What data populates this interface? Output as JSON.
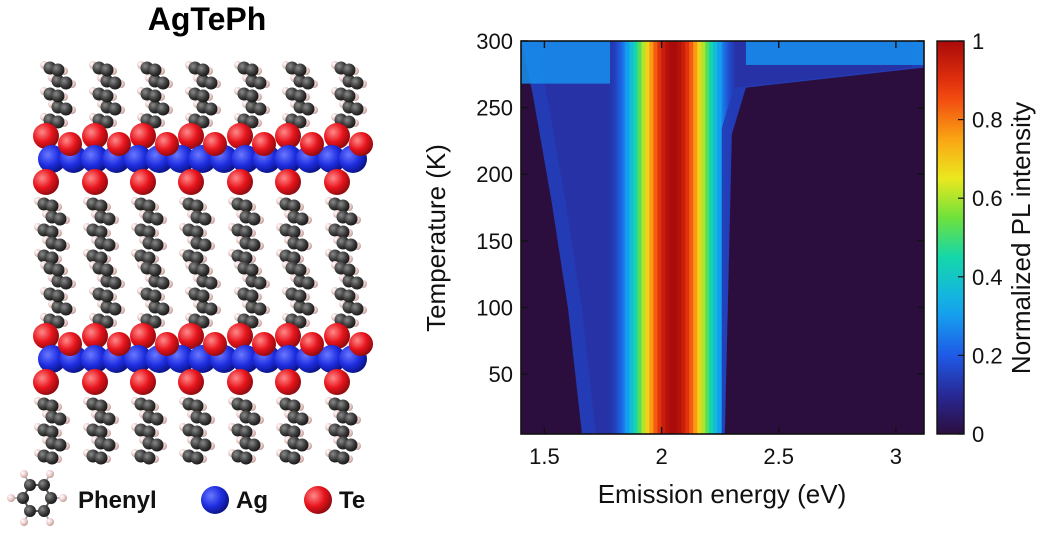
{
  "structure_panel": {
    "title": "AgTePh",
    "legend": [
      {
        "label": "Phenyl",
        "icon": "phenyl-ring-icon"
      },
      {
        "label": "Ag",
        "icon": "ag-atom-icon",
        "color": "#1e2ee0"
      },
      {
        "label": "Te",
        "icon": "te-atom-icon",
        "color": "#e8141c"
      }
    ],
    "colors": {
      "carbon": "#3a3a3a",
      "hydrogen": "#e9c9c6"
    }
  },
  "chart_data": {
    "type": "heatmap",
    "title": "",
    "xlabel": "Emission energy (eV)",
    "ylabel": "Temperature (K)",
    "colorbar_label": "Normalized PL intensity",
    "xlim": [
      1.4,
      3.12
    ],
    "ylim": [
      5,
      300
    ],
    "xticks": [
      1.5,
      2,
      2.5,
      3
    ],
    "xtick_labels": [
      "1.5",
      "2",
      "2.5",
      "3"
    ],
    "yticks": [
      50,
      100,
      150,
      200,
      250,
      300
    ],
    "ytick_labels": [
      "50",
      "100",
      "150",
      "200",
      "250",
      "300"
    ],
    "colorbar_range": [
      0,
      1
    ],
    "colorbar_ticks": [
      0,
      0.2,
      0.4,
      0.6,
      0.8,
      1
    ],
    "colorbar_tick_labels": [
      "0",
      "0.2",
      "0.4",
      "0.6",
      "0.8",
      "1"
    ],
    "colormap": "jet",
    "peak_energy_eV": 2.05,
    "peak_halfwidth_eV": 0.17,
    "low_edge_energy_eV": [
      [
        5,
        1.66
      ],
      [
        100,
        1.6
      ],
      [
        180,
        1.53
      ],
      [
        260,
        1.45
      ],
      [
        300,
        1.4
      ]
    ],
    "high_edge_energy_eV": [
      [
        5,
        2.27
      ],
      [
        230,
        2.3
      ],
      [
        265,
        2.36
      ],
      [
        280,
        3.12
      ],
      [
        300,
        3.12
      ]
    ],
    "background_level": 0.12,
    "grid": false
  }
}
